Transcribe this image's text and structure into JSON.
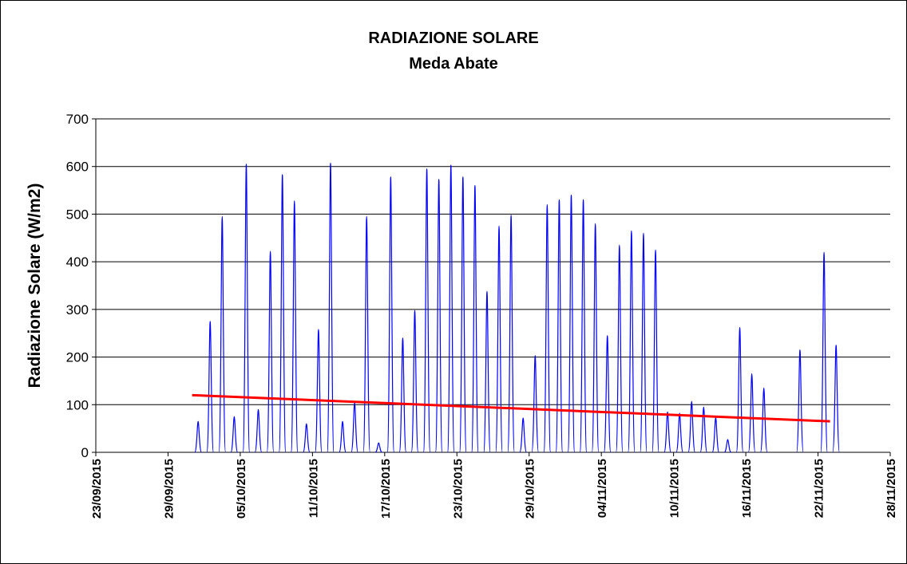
{
  "chart_data": {
    "type": "line",
    "title": "RADIAZIONE SOLARE",
    "subtitle": "Meda Abate",
    "y_label": "Radiazione Solare (W/m2)",
    "x": [
      "01/10/2015",
      "02/10/2015",
      "03/10/2015",
      "04/10/2015",
      "05/10/2015",
      "06/10/2015",
      "07/10/2015",
      "08/10/2015",
      "09/10/2015",
      "10/10/2015",
      "11/10/2015",
      "12/10/2015",
      "13/10/2015",
      "14/10/2015",
      "15/10/2015",
      "16/10/2015",
      "17/10/2015",
      "18/10/2015",
      "19/10/2015",
      "20/10/2015",
      "21/10/2015",
      "22/10/2015",
      "23/10/2015",
      "24/10/2015",
      "25/10/2015",
      "26/10/2015",
      "27/10/2015",
      "28/10/2015",
      "29/10/2015",
      "30/10/2015",
      "31/10/2015",
      "01/11/2015",
      "02/11/2015",
      "03/11/2015",
      "04/11/2015",
      "05/11/2015",
      "06/11/2015",
      "07/11/2015",
      "08/11/2015",
      "09/11/2015",
      "10/11/2015",
      "11/11/2015",
      "12/11/2015",
      "13/11/2015",
      "14/11/2015",
      "15/11/2015",
      "16/11/2015",
      "17/11/2015",
      "18/11/2015",
      "19/11/2015",
      "20/11/2015",
      "21/11/2015",
      "22/11/2015",
      "23/11/2015"
    ],
    "values": [
      65,
      275,
      495,
      75,
      605,
      90,
      422,
      583,
      528,
      60,
      258,
      607,
      65,
      105,
      495,
      20,
      578,
      240,
      298,
      595,
      573,
      603,
      578,
      560,
      338,
      475,
      498,
      72,
      203,
      520,
      530,
      540,
      530,
      480,
      245,
      435,
      465,
      460,
      425,
      85,
      82,
      107,
      95,
      73,
      27,
      262,
      165,
      135,
      null,
      null,
      215,
      null,
      420,
      225
    ],
    "color": "#0000ff",
    "trend": {
      "x": [
        "01/10/2015",
        "23/11/2015"
      ],
      "values": [
        120,
        65
      ],
      "color": "#ff0000"
    },
    "xlim": [
      "23/09/2015",
      "28/11/2015"
    ],
    "xticks": [
      "23/09/2015",
      "29/09/2015",
      "05/10/2015",
      "11/10/2015",
      "17/10/2015",
      "23/10/2015",
      "29/10/2015",
      "04/11/2015",
      "10/11/2015",
      "16/11/2015",
      "22/11/2015",
      "28/11/2015"
    ],
    "ylim": [
      0,
      700
    ],
    "yticks": [
      0,
      100,
      200,
      300,
      400,
      500,
      600,
      700
    ],
    "grid": true
  }
}
